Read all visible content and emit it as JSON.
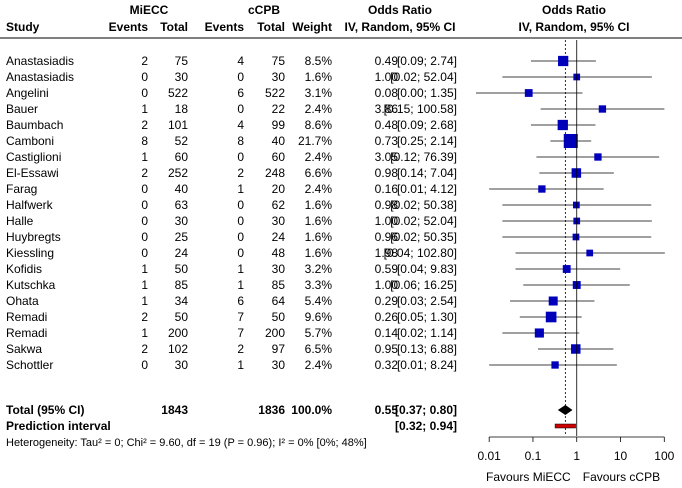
{
  "chart_data": {
    "type": "forest",
    "headers": {
      "study": "Study",
      "group_exp": "MiECC",
      "group_ctrl": "cCPB",
      "events": "Events",
      "total": "Total",
      "weight": "Weight",
      "or_title": "Odds Ratio",
      "or_method": "IV, Random, 95% CI"
    },
    "studies": [
      {
        "name": "Anastasiadis",
        "e_events": "2",
        "e_total": "75",
        "c_events": "4",
        "c_total": "75",
        "weight": "8.5%",
        "ci_text": "0.49 [0.09;   2.74]",
        "or": 0.49,
        "lo": 0.09,
        "hi": 2.74,
        "w": 8.5
      },
      {
        "name": "Anastasiadis",
        "e_events": "0",
        "e_total": "30",
        "c_events": "0",
        "c_total": "30",
        "weight": "1.6%",
        "ci_text": "1.00 [0.02;  52.04]",
        "or": 1.0,
        "lo": 0.02,
        "hi": 52.04,
        "w": 1.6
      },
      {
        "name": "Angelini",
        "e_events": "0",
        "e_total": "522",
        "c_events": "6",
        "c_total": "522",
        "weight": "3.1%",
        "ci_text": "0.08 [0.00;   1.35]",
        "or": 0.08,
        "lo": 0.005,
        "hi": 1.35,
        "w": 3.1
      },
      {
        "name": "Bauer",
        "e_events": "1",
        "e_total": "18",
        "c_events": "0",
        "c_total": "22",
        "weight": "2.4%",
        "ci_text": "3.86 [0.15; 100.58]",
        "or": 3.86,
        "lo": 0.15,
        "hi": 100.58,
        "w": 2.4
      },
      {
        "name": "Baumbach",
        "e_events": "2",
        "e_total": "101",
        "c_events": "4",
        "c_total": "99",
        "weight": "8.6%",
        "ci_text": "0.48 [0.09;   2.68]",
        "or": 0.48,
        "lo": 0.09,
        "hi": 2.68,
        "w": 8.6
      },
      {
        "name": "Camboni",
        "e_events": "8",
        "e_total": "52",
        "c_events": "8",
        "c_total": "40",
        "weight": "21.7%",
        "ci_text": "0.73 [0.25;   2.14]",
        "or": 0.73,
        "lo": 0.25,
        "hi": 2.14,
        "w": 21.7
      },
      {
        "name": "Castiglioni",
        "e_events": "1",
        "e_total": "60",
        "c_events": "0",
        "c_total": "60",
        "weight": "2.4%",
        "ci_text": "3.05 [0.12;  76.39]",
        "or": 3.05,
        "lo": 0.12,
        "hi": 76.39,
        "w": 2.4
      },
      {
        "name": "El-Essawi",
        "e_events": "2",
        "e_total": "252",
        "c_events": "2",
        "c_total": "248",
        "weight": "6.6%",
        "ci_text": "0.98 [0.14;   7.04]",
        "or": 0.98,
        "lo": 0.14,
        "hi": 7.04,
        "w": 6.6
      },
      {
        "name": "Farag",
        "e_events": "0",
        "e_total": "40",
        "c_events": "1",
        "c_total": "20",
        "weight": "2.4%",
        "ci_text": "0.16 [0.01;   4.12]",
        "or": 0.16,
        "lo": 0.01,
        "hi": 4.12,
        "w": 2.4
      },
      {
        "name": "Halfwerk",
        "e_events": "0",
        "e_total": "63",
        "c_events": "0",
        "c_total": "62",
        "weight": "1.6%",
        "ci_text": "0.98 [0.02;  50.38]",
        "or": 0.98,
        "lo": 0.02,
        "hi": 50.38,
        "w": 1.6
      },
      {
        "name": "Halle",
        "e_events": "0",
        "e_total": "30",
        "c_events": "0",
        "c_total": "30",
        "weight": "1.6%",
        "ci_text": "1.00 [0.02;  52.04]",
        "or": 1.0,
        "lo": 0.02,
        "hi": 52.04,
        "w": 1.6
      },
      {
        "name": "Huybregts",
        "e_events": "0",
        "e_total": "25",
        "c_events": "0",
        "c_total": "24",
        "weight": "1.6%",
        "ci_text": "0.96 [0.02;  50.35]",
        "or": 0.96,
        "lo": 0.02,
        "hi": 50.35,
        "w": 1.6
      },
      {
        "name": "Kiessling",
        "e_events": "0",
        "e_total": "24",
        "c_events": "0",
        "c_total": "48",
        "weight": "1.6%",
        "ci_text": "1.98 [0.04; 102.80]",
        "or": 1.98,
        "lo": 0.04,
        "hi": 102.8,
        "w": 1.6
      },
      {
        "name": "Kofidis",
        "e_events": "1",
        "e_total": "50",
        "c_events": "1",
        "c_total": "30",
        "weight": "3.2%",
        "ci_text": "0.59 [0.04;   9.83]",
        "or": 0.59,
        "lo": 0.04,
        "hi": 9.83,
        "w": 3.2
      },
      {
        "name": "Kutschka",
        "e_events": "1",
        "e_total": "85",
        "c_events": "1",
        "c_total": "85",
        "weight": "3.3%",
        "ci_text": "1.00 [0.06;  16.25]",
        "or": 1.0,
        "lo": 0.06,
        "hi": 16.25,
        "w": 3.3
      },
      {
        "name": "Ohata",
        "e_events": "1",
        "e_total": "34",
        "c_events": "6",
        "c_total": "64",
        "weight": "5.4%",
        "ci_text": "0.29 [0.03;   2.54]",
        "or": 0.29,
        "lo": 0.03,
        "hi": 2.54,
        "w": 5.4
      },
      {
        "name": "Remadi",
        "e_events": "2",
        "e_total": "50",
        "c_events": "7",
        "c_total": "50",
        "weight": "9.6%",
        "ci_text": "0.26 [0.05;   1.30]",
        "or": 0.26,
        "lo": 0.05,
        "hi": 1.3,
        "w": 9.6
      },
      {
        "name": "Remadi",
        "e_events": "1",
        "e_total": "200",
        "c_events": "7",
        "c_total": "200",
        "weight": "5.7%",
        "ci_text": "0.14 [0.02;   1.14]",
        "or": 0.14,
        "lo": 0.02,
        "hi": 1.14,
        "w": 5.7
      },
      {
        "name": "Sakwa",
        "e_events": "2",
        "e_total": "102",
        "c_events": "2",
        "c_total": "97",
        "weight": "6.5%",
        "ci_text": "0.95 [0.13;   6.88]",
        "or": 0.95,
        "lo": 0.13,
        "hi": 6.88,
        "w": 6.5
      },
      {
        "name": "Schottler",
        "e_events": "0",
        "e_total": "30",
        "c_events": "1",
        "c_total": "30",
        "weight": "2.4%",
        "ci_text": "0.32 [0.01;   8.24]",
        "or": 0.32,
        "lo": 0.01,
        "hi": 8.24,
        "w": 2.4
      }
    ],
    "total": {
      "label": "Total (95% CI)",
      "e_total": "1843",
      "c_total": "1836",
      "weight": "100.0%",
      "ci_text": "0.55 [0.37;   0.80]",
      "or": 0.55,
      "lo": 0.37,
      "hi": 0.8
    },
    "prediction": {
      "label": "Prediction interval",
      "ci_text": "[0.32;   0.94]",
      "lo": 0.32,
      "hi": 0.94
    },
    "heterogeneity": "Heterogeneity: Tau² = 0; Chi² = 9.60, df = 19 (P = 0.96); I² = 0% [0%; 48%]",
    "x_axis": {
      "scale": "log",
      "range": [
        0.005,
        150
      ],
      "ticks": [
        0.01,
        0.1,
        1,
        10,
        100
      ],
      "tick_labels": [
        "0.01",
        "0.1",
        "1",
        "10",
        "100"
      ]
    },
    "favours_left": "Favours MiECC",
    "favours_right": "Favours cCPB",
    "colors": {
      "square": "#0000bb",
      "diamond": "#000000",
      "prediction": "#cc0000",
      "line": "#000000"
    }
  }
}
